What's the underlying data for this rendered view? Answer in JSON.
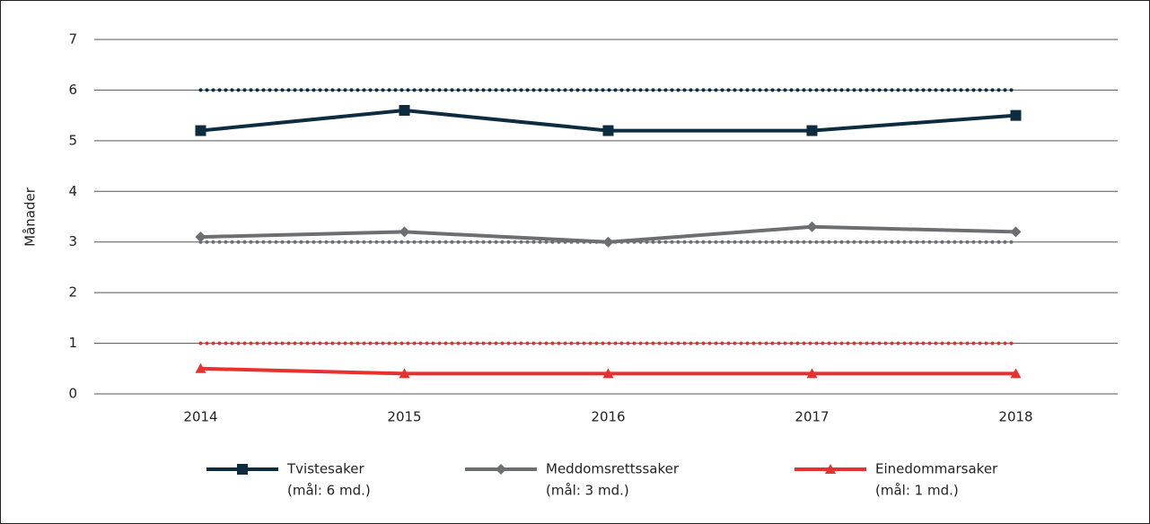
{
  "chart_data": {
    "type": "line",
    "y_label": "Månader",
    "categories": [
      "2014",
      "2015",
      "2016",
      "2017",
      "2018"
    ],
    "series": [
      {
        "name": "Tvistesaker",
        "target_label": "(mål: 6 md.)",
        "target": 6,
        "color": "#0d2c40",
        "marker": "square",
        "values": [
          5.2,
          5.6,
          5.2,
          5.2,
          5.5
        ]
      },
      {
        "name": "Meddomsrettssaker",
        "target_label": "(mål: 3 md.)",
        "target": 3,
        "color": "#6d6e71",
        "marker": "diamond",
        "values": [
          3.1,
          3.2,
          3.0,
          3.3,
          3.2
        ]
      },
      {
        "name": "Einedommarsaker",
        "target_label": "(mål: 1 md.)",
        "target": 1,
        "color": "#e8312f",
        "marker": "triangle",
        "values": [
          0.5,
          0.4,
          0.4,
          0.4,
          0.4
        ]
      }
    ],
    "ylim": [
      0,
      7
    ],
    "yticks": [
      0,
      1,
      2,
      3,
      4,
      5,
      6,
      7
    ],
    "grid": true
  }
}
